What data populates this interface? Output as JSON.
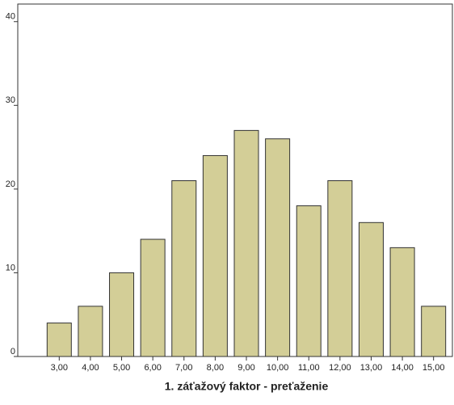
{
  "chart_data": {
    "type": "bar",
    "x_label": "1. záťažový faktor - preťaženie",
    "categories": [
      "3,00",
      "4,00",
      "5,00",
      "6,00",
      "7,00",
      "8,00",
      "9,00",
      "10,00",
      "11,00",
      "12,00",
      "13,00",
      "14,00",
      "15,00"
    ],
    "values": [
      4,
      6,
      10,
      14,
      21,
      24,
      27,
      26,
      18,
      21,
      16,
      13,
      6
    ],
    "color": "#d3ce97",
    "ylim": [
      0,
      42.1
    ],
    "yticks": [
      0,
      10,
      20,
      30,
      40
    ],
    "grid": false
  }
}
